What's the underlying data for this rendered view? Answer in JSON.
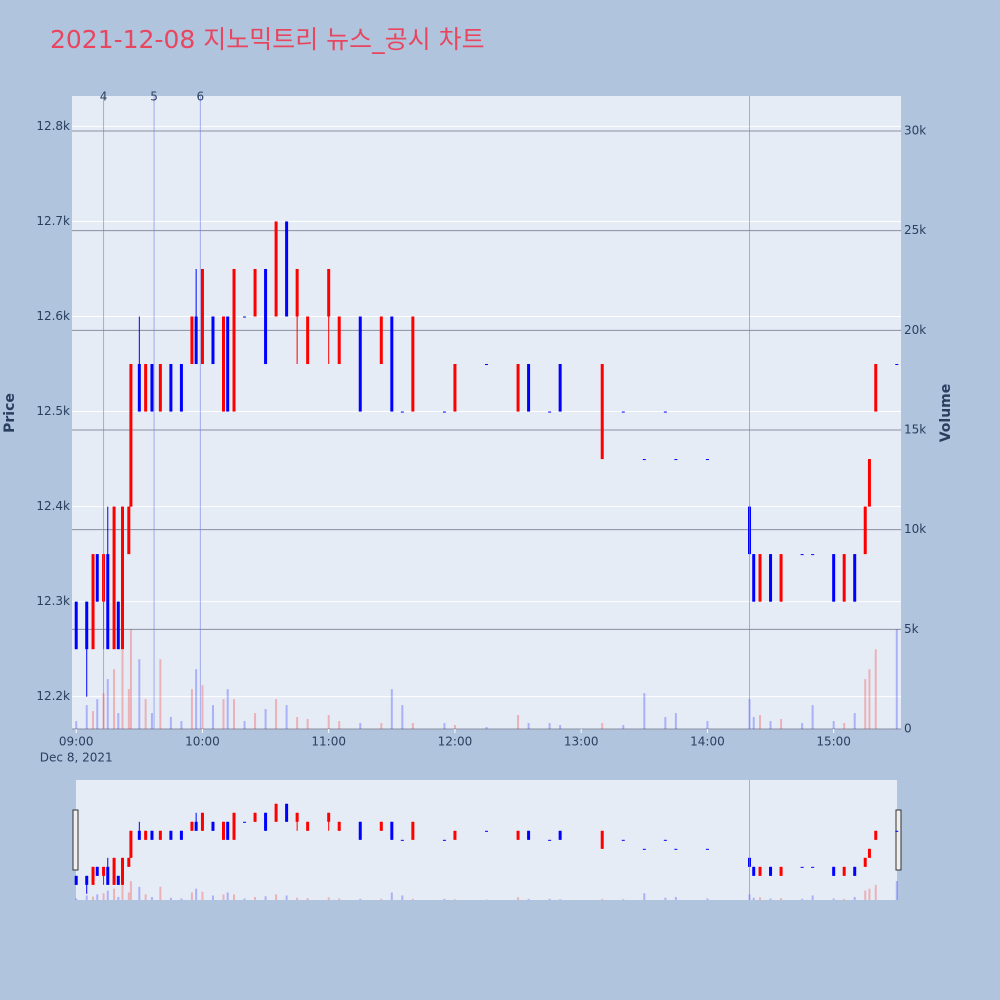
{
  "chart_data": {
    "type": "candlestick",
    "title": "2021-12-08 지노믹트리 뉴스_공시 차트",
    "y_label": "Price",
    "y2_label": "Volume",
    "x_sublabel": "Dec 8, 2021",
    "increasing_color": "#ff0000",
    "decreasing_color": "#0000ff",
    "x": [
      "09:00",
      "09:05",
      "09:08",
      "09:10",
      "09:13",
      "09:15",
      "09:18",
      "09:20",
      "09:22",
      "09:25",
      "09:26",
      "09:30",
      "09:33",
      "09:36",
      "09:40",
      "09:45",
      "09:50",
      "09:55",
      "09:57",
      "10:00",
      "10:05",
      "10:10",
      "10:12",
      "10:15",
      "10:20",
      "10:25",
      "10:30",
      "10:35",
      "10:40",
      "10:45",
      "10:50",
      "11:00",
      "11:05",
      "11:15",
      "11:25",
      "11:30",
      "11:35",
      "11:40",
      "11:55",
      "12:00",
      "12:15",
      "12:30",
      "12:35",
      "12:45",
      "12:50",
      "13:10",
      "13:20",
      "13:30",
      "13:40",
      "13:45",
      "14:00",
      "14:20",
      "14:22",
      "14:25",
      "14:30",
      "14:35",
      "14:45",
      "14:50",
      "15:00",
      "15:05",
      "15:10",
      "15:15",
      "15:17",
      "15:20",
      "15:30"
    ],
    "open": [
      12300,
      12300,
      12250,
      12350,
      12300,
      12350,
      12250,
      12300,
      12250,
      12350,
      12400,
      12550,
      12500,
      12550,
      12500,
      12550,
      12550,
      12550,
      12600,
      12550,
      12600,
      12500,
      12600,
      12500,
      12600,
      12600,
      12650,
      12600,
      12700,
      12600,
      12550,
      12600,
      12550,
      12600,
      12550,
      12600,
      12500,
      12500,
      12500,
      12500,
      12550,
      12500,
      12550,
      12500,
      12550,
      12450,
      12500,
      12450,
      12500,
      12450,
      12450,
      12400,
      12350,
      12300,
      12350,
      12300,
      12350,
      12350,
      12350,
      12300,
      12350,
      12350,
      12400,
      12500,
      12550
    ],
    "high": [
      12300,
      12300,
      12350,
      12350,
      12350,
      12400,
      12400,
      12300,
      12400,
      12400,
      12550,
      12600,
      12550,
      12550,
      12550,
      12550,
      12550,
      12600,
      12650,
      12650,
      12600,
      12600,
      12600,
      12650,
      12600,
      12650,
      12650,
      12700,
      12700,
      12650,
      12600,
      12650,
      12600,
      12600,
      12600,
      12600,
      12500,
      12600,
      12500,
      12550,
      12550,
      12550,
      12550,
      12500,
      12550,
      12550,
      12500,
      12450,
      12500,
      12450,
      12450,
      12400,
      12350,
      12350,
      12350,
      12350,
      12350,
      12350,
      12350,
      12350,
      12350,
      12400,
      12450,
      12550,
      12550
    ],
    "low": [
      12250,
      12200,
      12250,
      12300,
      12250,
      12250,
      12250,
      12250,
      12250,
      12350,
      12400,
      12500,
      12500,
      12500,
      12500,
      12500,
      12500,
      12550,
      12550,
      12550,
      12550,
      12500,
      12500,
      12500,
      12600,
      12600,
      12550,
      12600,
      12600,
      12550,
      12550,
      12550,
      12550,
      12500,
      12550,
      12500,
      12500,
      12500,
      12500,
      12500,
      12550,
      12500,
      12500,
      12500,
      12500,
      12450,
      12500,
      12450,
      12500,
      12450,
      12450,
      12350,
      12300,
      12300,
      12300,
      12300,
      12350,
      12350,
      12300,
      12300,
      12300,
      12350,
      12400,
      12500,
      12550
    ],
    "close": [
      12250,
      12250,
      12350,
      12300,
      12350,
      12250,
      12400,
      12250,
      12400,
      12400,
      12550,
      12500,
      12550,
      12500,
      12550,
      12500,
      12500,
      12600,
      12550,
      12650,
      12550,
      12600,
      12500,
      12650,
      12600,
      12650,
      12550,
      12700,
      12600,
      12650,
      12600,
      12650,
      12600,
      12500,
      12600,
      12500,
      12500,
      12600,
      12500,
      12550,
      12550,
      12550,
      12500,
      12500,
      12500,
      12550,
      12500,
      12450,
      12500,
      12450,
      12450,
      12350,
      12300,
      12350,
      12300,
      12350,
      12350,
      12350,
      12300,
      12350,
      12300,
      12400,
      12450,
      12550,
      12550
    ],
    "volume": [
      400,
      1200,
      900,
      1500,
      1800,
      2500,
      3000,
      800,
      4000,
      2000,
      5000,
      3500,
      1500,
      800,
      3500,
      600,
      400,
      2000,
      3000,
      2200,
      1200,
      1500,
      2000,
      1500,
      400,
      800,
      1000,
      1500,
      1200,
      600,
      500,
      700,
      400,
      300,
      300,
      2000,
      1200,
      300,
      300,
      200,
      100,
      700,
      300,
      300,
      200,
      300,
      200,
      1800,
      600,
      800,
      400,
      1500,
      600,
      700,
      400,
      500,
      300,
      1200,
      400,
      300,
      800,
      2500,
      3000,
      4000,
      5000
    ],
    "xlim": [
      "08:58",
      "15:32"
    ],
    "xticks": [
      "09:00",
      "10:00",
      "11:00",
      "12:00",
      "13:00",
      "14:00",
      "15:00"
    ],
    "ylim": [
      12166,
      12832
    ],
    "yticks": [
      {
        "value": 12200,
        "label": "12.2k"
      },
      {
        "value": 12300,
        "label": "12.3k"
      },
      {
        "value": 12400,
        "label": "12.4k"
      },
      {
        "value": 12500,
        "label": "12.5k"
      },
      {
        "value": 12600,
        "label": "12.6k"
      },
      {
        "value": 12700,
        "label": "12.7k"
      },
      {
        "value": 12800,
        "label": "12.8k"
      }
    ],
    "y2lim": [
      0,
      31755
    ],
    "y2ticks": [
      0,
      {
        "value": 5000,
        "label": "5k"
      },
      {
        "value": 10000,
        "label": "10k"
      },
      {
        "value": 15000,
        "label": "15k"
      },
      {
        "value": 20000,
        "label": "20k"
      },
      {
        "value": 25000,
        "label": "25k"
      },
      {
        "value": 30000,
        "label": "30k"
      }
    ],
    "annotations": [
      {
        "x": "09:13",
        "label": "4"
      },
      {
        "x": "09:37",
        "label": "5"
      },
      {
        "x": "09:59",
        "label": "6"
      },
      {
        "x": "14:20"
      }
    ],
    "grid": true,
    "range_slider": true
  }
}
